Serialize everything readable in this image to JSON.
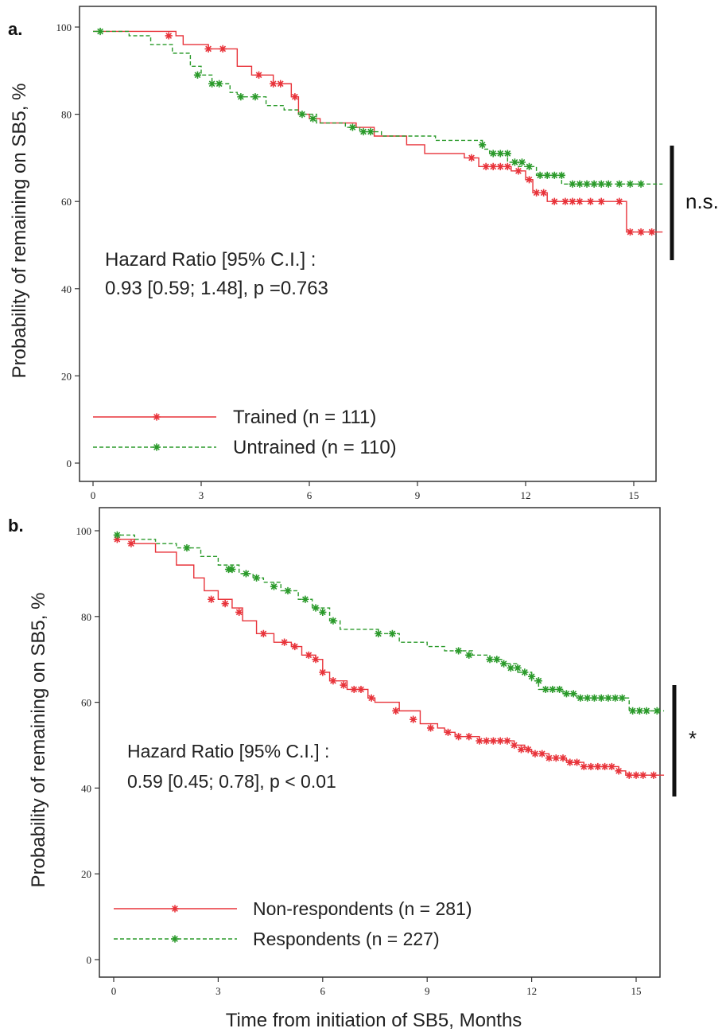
{
  "chart_data": [
    {
      "type": "line",
      "panel_label": "a.",
      "ylabel": "Probability of remaining on SB5, %",
      "xlabel": "",
      "xlim": [
        0,
        15.8
      ],
      "ylim": [
        0,
        100
      ],
      "xticks": [
        "0",
        "3",
        "6",
        "9",
        "12",
        "15"
      ],
      "yticks": [
        "0",
        "20",
        "40",
        "60",
        "80",
        "100"
      ],
      "annotation": [
        "Hazard Ratio [95% C.I.] :",
        "0.93 [0.59; 1.48], p =0.763"
      ],
      "significance": "n.s.",
      "legend_position": "bottom-left",
      "series": [
        {
          "name": "Trained (n = 111)",
          "color": "#e8333a",
          "style": "solid",
          "steps": [
            [
              0,
              99
            ],
            [
              2.3,
              98
            ],
            [
              2.5,
              96
            ],
            [
              3.2,
              95
            ],
            [
              4.0,
              91
            ],
            [
              4.4,
              89
            ],
            [
              5.0,
              87
            ],
            [
              5.5,
              84
            ],
            [
              5.7,
              80
            ],
            [
              6.0,
              79
            ],
            [
              6.3,
              78
            ],
            [
              7.3,
              77
            ],
            [
              7.8,
              75
            ],
            [
              8.7,
              73
            ],
            [
              9.2,
              71
            ],
            [
              10.3,
              70
            ],
            [
              10.7,
              68
            ],
            [
              11.6,
              67
            ],
            [
              12.0,
              65
            ],
            [
              12.2,
              62
            ],
            [
              12.6,
              60
            ],
            [
              14.8,
              53
            ],
            [
              15.8,
              53
            ]
          ],
          "censored": [
            [
              2.1,
              98
            ],
            [
              3.2,
              95
            ],
            [
              3.6,
              95
            ],
            [
              4.6,
              89
            ],
            [
              5.0,
              87
            ],
            [
              5.2,
              87
            ],
            [
              5.6,
              84
            ],
            [
              10.5,
              70
            ],
            [
              10.9,
              68
            ],
            [
              11.1,
              68
            ],
            [
              11.3,
              68
            ],
            [
              11.5,
              68
            ],
            [
              11.8,
              67
            ],
            [
              12.1,
              65
            ],
            [
              12.3,
              62
            ],
            [
              12.5,
              62
            ],
            [
              12.8,
              60
            ],
            [
              13.1,
              60
            ],
            [
              13.3,
              60
            ],
            [
              13.5,
              60
            ],
            [
              13.8,
              60
            ],
            [
              14.1,
              60
            ],
            [
              14.6,
              60
            ],
            [
              14.9,
              53
            ],
            [
              15.2,
              53
            ],
            [
              15.5,
              53
            ]
          ]
        },
        {
          "name": "Untrained (n = 110)",
          "color": "#2a9a2a",
          "style": "dashed",
          "steps": [
            [
              0,
              99
            ],
            [
              1.0,
              98
            ],
            [
              1.6,
              96
            ],
            [
              2.2,
              94
            ],
            [
              2.7,
              91
            ],
            [
              3.0,
              89
            ],
            [
              3.3,
              87
            ],
            [
              3.8,
              85
            ],
            [
              4.0,
              84
            ],
            [
              4.8,
              82
            ],
            [
              5.3,
              81
            ],
            [
              5.7,
              80
            ],
            [
              6.2,
              78
            ],
            [
              7.0,
              77
            ],
            [
              7.4,
              76
            ],
            [
              8.0,
              75
            ],
            [
              9.5,
              74
            ],
            [
              10.8,
              72
            ],
            [
              11.0,
              71
            ],
            [
              11.5,
              69
            ],
            [
              11.8,
              68
            ],
            [
              12.3,
              66
            ],
            [
              13.0,
              64
            ],
            [
              15.8,
              64
            ]
          ],
          "censored": [
            [
              0.2,
              99
            ],
            [
              2.9,
              89
            ],
            [
              3.3,
              87
            ],
            [
              3.5,
              87
            ],
            [
              4.1,
              84
            ],
            [
              4.5,
              84
            ],
            [
              5.8,
              80
            ],
            [
              6.1,
              79
            ],
            [
              7.2,
              77
            ],
            [
              7.5,
              76
            ],
            [
              7.7,
              76
            ],
            [
              10.8,
              73
            ],
            [
              11.1,
              71
            ],
            [
              11.3,
              71
            ],
            [
              11.5,
              71
            ],
            [
              11.7,
              69
            ],
            [
              11.9,
              69
            ],
            [
              12.1,
              68
            ],
            [
              12.4,
              66
            ],
            [
              12.6,
              66
            ],
            [
              12.8,
              66
            ],
            [
              13.0,
              66
            ],
            [
              13.3,
              64
            ],
            [
              13.5,
              64
            ],
            [
              13.7,
              64
            ],
            [
              13.9,
              64
            ],
            [
              14.1,
              64
            ],
            [
              14.3,
              64
            ],
            [
              14.6,
              64
            ],
            [
              14.9,
              64
            ],
            [
              15.2,
              64
            ]
          ]
        }
      ]
    },
    {
      "type": "line",
      "panel_label": "b.",
      "ylabel": "Probability of remaining on SB5, %",
      "xlabel": "Time from initiation of SB5, Months",
      "xlim": [
        0,
        15.8
      ],
      "ylim": [
        0,
        100
      ],
      "xticks": [
        "0",
        "3",
        "6",
        "9",
        "12",
        "15"
      ],
      "yticks": [
        "0",
        "20",
        "40",
        "60",
        "80",
        "100"
      ],
      "annotation": [
        "Hazard Ratio [95% C.I.] :",
        "0.59 [0.45; 0.78], p < 0.01"
      ],
      "significance": "*",
      "legend_position": "bottom-left",
      "series": [
        {
          "name": "Non-respondents (n = 281)",
          "color": "#e8333a",
          "style": "solid",
          "steps": [
            [
              0,
              98
            ],
            [
              0.6,
              97
            ],
            [
              1.2,
              95
            ],
            [
              1.8,
              92
            ],
            [
              2.3,
              89
            ],
            [
              2.6,
              86
            ],
            [
              3.0,
              84
            ],
            [
              3.4,
              82
            ],
            [
              3.7,
              79
            ],
            [
              4.1,
              76
            ],
            [
              4.6,
              74
            ],
            [
              5.1,
              73
            ],
            [
              5.4,
              71
            ],
            [
              5.8,
              70
            ],
            [
              6.0,
              67
            ],
            [
              6.2,
              65
            ],
            [
              6.7,
              63
            ],
            [
              7.3,
              61
            ],
            [
              7.5,
              60
            ],
            [
              8.2,
              58
            ],
            [
              8.8,
              55
            ],
            [
              9.3,
              54
            ],
            [
              9.5,
              53
            ],
            [
              9.8,
              52
            ],
            [
              10.5,
              51
            ],
            [
              11.0,
              51
            ],
            [
              11.5,
              50
            ],
            [
              11.8,
              49
            ],
            [
              12.0,
              48
            ],
            [
              12.5,
              47
            ],
            [
              13.0,
              46
            ],
            [
              13.5,
              45
            ],
            [
              14.5,
              44
            ],
            [
              14.7,
              43
            ],
            [
              15.8,
              43
            ]
          ],
          "censored": [
            [
              0.1,
              98
            ],
            [
              0.5,
              97
            ],
            [
              2.8,
              84
            ],
            [
              3.2,
              83
            ],
            [
              3.6,
              81
            ],
            [
              4.3,
              76
            ],
            [
              4.9,
              74
            ],
            [
              5.2,
              73
            ],
            [
              5.6,
              71
            ],
            [
              5.8,
              70
            ],
            [
              6.0,
              67
            ],
            [
              6.3,
              65
            ],
            [
              6.6,
              64
            ],
            [
              6.9,
              63
            ],
            [
              7.1,
              63
            ],
            [
              7.4,
              61
            ],
            [
              8.1,
              58
            ],
            [
              8.6,
              56
            ],
            [
              9.1,
              54
            ],
            [
              9.6,
              53
            ],
            [
              9.9,
              52
            ],
            [
              10.2,
              52
            ],
            [
              10.5,
              51
            ],
            [
              10.7,
              51
            ],
            [
              10.9,
              51
            ],
            [
              11.1,
              51
            ],
            [
              11.3,
              51
            ],
            [
              11.5,
              50
            ],
            [
              11.7,
              49
            ],
            [
              11.9,
              49
            ],
            [
              12.1,
              48
            ],
            [
              12.3,
              48
            ],
            [
              12.5,
              47
            ],
            [
              12.7,
              47
            ],
            [
              12.9,
              47
            ],
            [
              13.1,
              46
            ],
            [
              13.3,
              46
            ],
            [
              13.5,
              45
            ],
            [
              13.7,
              45
            ],
            [
              13.9,
              45
            ],
            [
              14.1,
              45
            ],
            [
              14.3,
              45
            ],
            [
              14.5,
              44
            ],
            [
              14.8,
              43
            ],
            [
              15.0,
              43
            ],
            [
              15.2,
              43
            ],
            [
              15.5,
              43
            ]
          ]
        },
        {
          "name": "Respondents (n = 227)",
          "color": "#2a9a2a",
          "style": "dashed",
          "steps": [
            [
              0,
              99
            ],
            [
              0.6,
              98
            ],
            [
              1.2,
              97
            ],
            [
              1.8,
              96
            ],
            [
              2.5,
              94
            ],
            [
              3.0,
              92
            ],
            [
              3.6,
              90
            ],
            [
              4.0,
              89
            ],
            [
              4.3,
              88
            ],
            [
              4.8,
              86
            ],
            [
              5.3,
              84
            ],
            [
              5.7,
              82
            ],
            [
              6.2,
              79
            ],
            [
              6.5,
              77
            ],
            [
              7.3,
              77
            ],
            [
              7.6,
              76
            ],
            [
              8.2,
              74
            ],
            [
              9.0,
              73
            ],
            [
              9.5,
              72
            ],
            [
              10.3,
              71
            ],
            [
              10.8,
              70
            ],
            [
              11.2,
              69
            ],
            [
              11.6,
              67
            ],
            [
              12.0,
              65
            ],
            [
              12.2,
              63
            ],
            [
              12.9,
              62
            ],
            [
              13.3,
              61
            ],
            [
              14.8,
              58
            ],
            [
              15.8,
              58
            ]
          ],
          "censored": [
            [
              0.1,
              99
            ],
            [
              2.1,
              96
            ],
            [
              3.3,
              91
            ],
            [
              3.4,
              91
            ],
            [
              3.8,
              90
            ],
            [
              4.1,
              89
            ],
            [
              4.6,
              87
            ],
            [
              5.0,
              86
            ],
            [
              5.5,
              84
            ],
            [
              5.8,
              82
            ],
            [
              6.0,
              81
            ],
            [
              6.3,
              79
            ],
            [
              7.6,
              76
            ],
            [
              8.0,
              76
            ],
            [
              9.9,
              72
            ],
            [
              10.2,
              71
            ],
            [
              10.8,
              70
            ],
            [
              11.0,
              70
            ],
            [
              11.2,
              69
            ],
            [
              11.4,
              68
            ],
            [
              11.6,
              68
            ],
            [
              11.8,
              67
            ],
            [
              12.0,
              66
            ],
            [
              12.2,
              65
            ],
            [
              12.4,
              63
            ],
            [
              12.6,
              63
            ],
            [
              12.8,
              63
            ],
            [
              13.0,
              62
            ],
            [
              13.2,
              62
            ],
            [
              13.4,
              61
            ],
            [
              13.6,
              61
            ],
            [
              13.8,
              61
            ],
            [
              14.0,
              61
            ],
            [
              14.2,
              61
            ],
            [
              14.4,
              61
            ],
            [
              14.6,
              61
            ],
            [
              14.9,
              58
            ],
            [
              15.1,
              58
            ],
            [
              15.3,
              58
            ],
            [
              15.6,
              58
            ]
          ]
        }
      ]
    }
  ]
}
